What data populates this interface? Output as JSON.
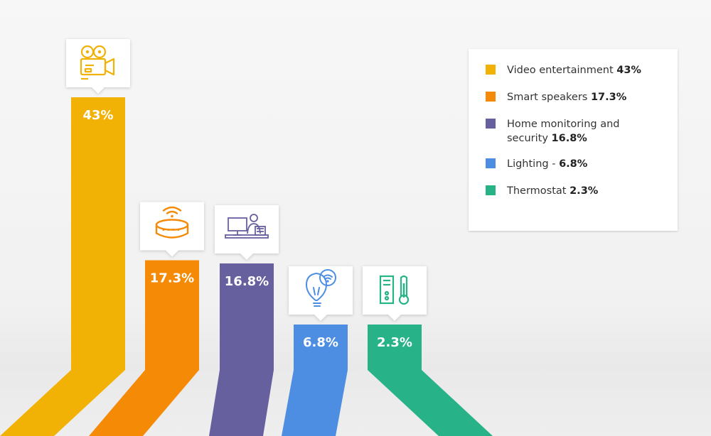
{
  "chart_data": {
    "type": "bar",
    "categories": [
      "Video entertainment",
      "Smart speakers",
      "Home monitoring and security",
      "Lighting",
      "Thermostat"
    ],
    "values": [
      43,
      17.3,
      16.8,
      6.8,
      2.3
    ],
    "data_labels": [
      "43%",
      "17.3%",
      "16.8%",
      "6.8%",
      "2.3%"
    ],
    "colors": [
      "#f2b105",
      "#f58a07",
      "#67609f",
      "#4d8ee3",
      "#27b288"
    ],
    "icons": [
      "video-camera-icon",
      "smart-speaker-icon",
      "security-monitoring-icon",
      "smart-bulb-icon",
      "thermostat-icon"
    ],
    "ylim": [
      0,
      43
    ],
    "grid": false,
    "legend_position": "top-right"
  },
  "legend": {
    "items": [
      {
        "label": "Video entertainment",
        "value": "43%",
        "color": "#f2b105"
      },
      {
        "label": "Smart speakers",
        "value": "17.3%",
        "color": "#f58a07"
      },
      {
        "label": "Home monitoring and security",
        "label_line1": "Home monitoring and",
        "label_line2": "security",
        "value": "16.8%",
        "color": "#67609f"
      },
      {
        "label": "Lighting -",
        "value": "6.8%",
        "color": "#4d8ee3"
      },
      {
        "label": "Thermostat",
        "value": "2.3%",
        "color": "#27b288"
      }
    ]
  }
}
